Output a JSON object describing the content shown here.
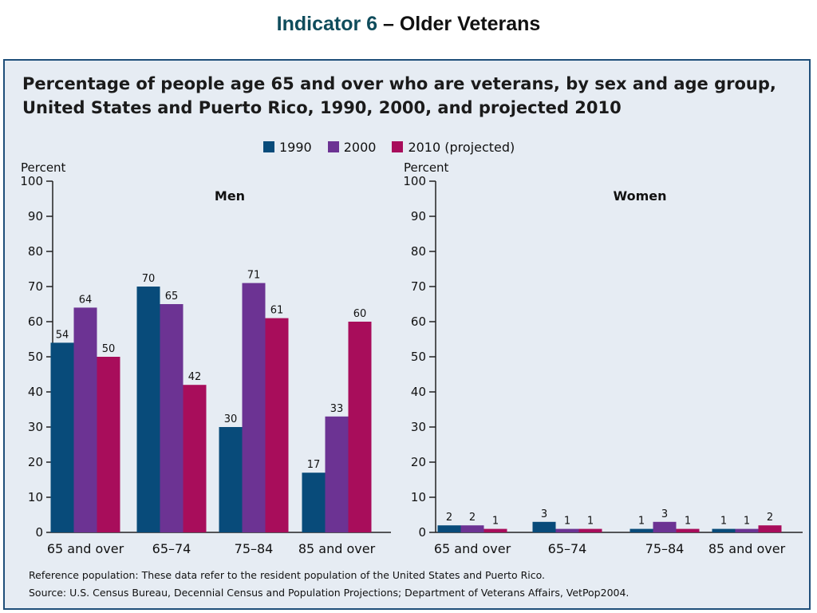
{
  "slide": {
    "title_accent": "Indicator 6",
    "title_rest": " – Older Veterans"
  },
  "chart_data": {
    "type": "bar",
    "title_line1": "Percentage of people age 65 and over who are veterans, by sex and age group,",
    "title_line2": "United States and Puerto Rico, 1990, 2000, and projected 2010",
    "ylabel": "Percent",
    "ylim": [
      0,
      100
    ],
    "yticks": [
      0,
      10,
      20,
      30,
      40,
      50,
      60,
      70,
      80,
      90,
      100
    ],
    "categories": [
      "65 and over",
      "65–74",
      "75–84",
      "85 and over"
    ],
    "legend": [
      {
        "name": "1990",
        "color": "#084b7a"
      },
      {
        "name": "2000",
        "color": "#6c3393"
      },
      {
        "name": "2010 (projected)",
        "color": "#a80d5b"
      }
    ],
    "panels": [
      {
        "label": "Men",
        "series": [
          {
            "name": "1990",
            "values": [
              54,
              70,
              30,
              17
            ]
          },
          {
            "name": "2000",
            "values": [
              64,
              65,
              71,
              33
            ]
          },
          {
            "name": "2010 (projected)",
            "values": [
              50,
              42,
              61,
              60
            ]
          }
        ]
      },
      {
        "label": "Women",
        "series": [
          {
            "name": "1990",
            "values": [
              2,
              3,
              1,
              1
            ]
          },
          {
            "name": "2000",
            "values": [
              2,
              1,
              3,
              1
            ]
          },
          {
            "name": "2010 (projected)",
            "values": [
              1,
              1,
              1,
              2
            ]
          }
        ]
      }
    ],
    "grid": false,
    "legend_position": "top-center"
  },
  "notes": {
    "reference": "Reference population: These data refer to the resident population of the United States and Puerto Rico.",
    "source": "Source: U.S. Census Bureau, Decennial Census and Population Projections; Department of Veterans Affairs, VetPop2004."
  }
}
